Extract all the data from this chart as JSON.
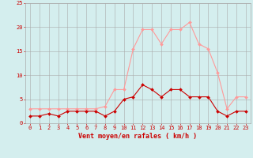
{
  "x": [
    0,
    1,
    2,
    3,
    4,
    5,
    6,
    7,
    8,
    9,
    10,
    11,
    12,
    13,
    14,
    15,
    16,
    17,
    18,
    19,
    20,
    21,
    22,
    23
  ],
  "wind_avg": [
    1.5,
    1.5,
    2.0,
    1.5,
    2.5,
    2.5,
    2.5,
    2.5,
    1.5,
    2.5,
    5.0,
    5.5,
    8.0,
    7.0,
    5.5,
    7.0,
    7.0,
    5.5,
    5.5,
    5.5,
    2.5,
    1.5,
    2.5,
    2.5
  ],
  "wind_gust": [
    3.0,
    3.0,
    3.0,
    3.0,
    3.0,
    3.0,
    3.0,
    3.0,
    3.5,
    7.0,
    7.0,
    15.5,
    19.5,
    19.5,
    16.5,
    19.5,
    19.5,
    21.0,
    16.5,
    15.5,
    10.5,
    3.0,
    5.5,
    5.5
  ],
  "ylim": [
    0,
    25
  ],
  "yticks": [
    0,
    5,
    10,
    15,
    20,
    25
  ],
  "bg_color": "#d4eeee",
  "grid_color": "#aaaaaa",
  "line_avg_color": "#cc0000",
  "line_gust_color": "#ff9999",
  "marker_size": 2.0,
  "xlabel": "Vent moyen/en rafales ( km/h )",
  "xlabel_color": "#cc0000",
  "tick_label_fontsize": 5.0,
  "xlabel_fontsize": 6.0
}
